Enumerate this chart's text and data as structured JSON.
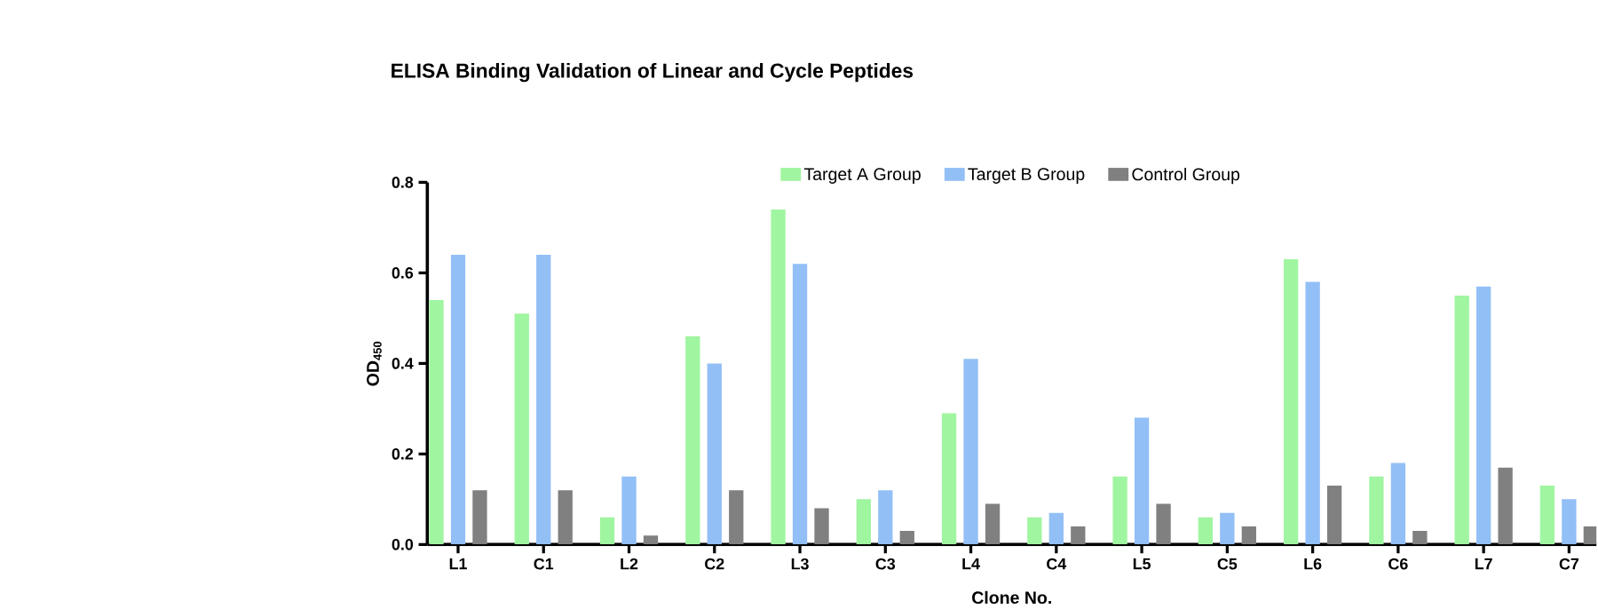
{
  "chart_data": {
    "type": "bar",
    "title": "ELISA Binding Validation of Linear and Cycle Peptides",
    "xlabel": "Clone No.",
    "ylabel": "OD$_{450}$",
    "categories": [
      "L1",
      "C1",
      "L2",
      "C2",
      "L3",
      "C3",
      "L4",
      "C4",
      "L5",
      "C5",
      "L6",
      "C6",
      "L7",
      "C7"
    ],
    "series": [
      {
        "name": "Target A Group",
        "color": "#a0f5a0",
        "values": [
          0.54,
          0.51,
          0.06,
          0.46,
          0.74,
          0.1,
          0.29,
          0.06,
          0.15,
          0.06,
          0.63,
          0.15,
          0.55,
          0.13
        ]
      },
      {
        "name": "Target B Group",
        "color": "#92bff6",
        "values": [
          0.64,
          0.64,
          0.15,
          0.4,
          0.62,
          0.12,
          0.41,
          0.07,
          0.28,
          0.07,
          0.58,
          0.18,
          0.57,
          0.1
        ]
      },
      {
        "name": "Control Group",
        "color": "#808080",
        "values": [
          0.12,
          0.12,
          0.02,
          0.12,
          0.08,
          0.03,
          0.09,
          0.04,
          0.09,
          0.04,
          0.13,
          0.03,
          0.17,
          0.04
        ]
      }
    ],
    "ylim": [
      0,
      0.8
    ],
    "yticks": [
      {
        "value": 0,
        "label": "0.0"
      },
      {
        "value": 0.2,
        "label": "0.2"
      },
      {
        "value": 0.4,
        "label": "0.4"
      },
      {
        "value": 0.6,
        "label": "0.6"
      },
      {
        "value": 0.8,
        "label": "0.8"
      }
    ],
    "legend": "top",
    "grid": false
  }
}
